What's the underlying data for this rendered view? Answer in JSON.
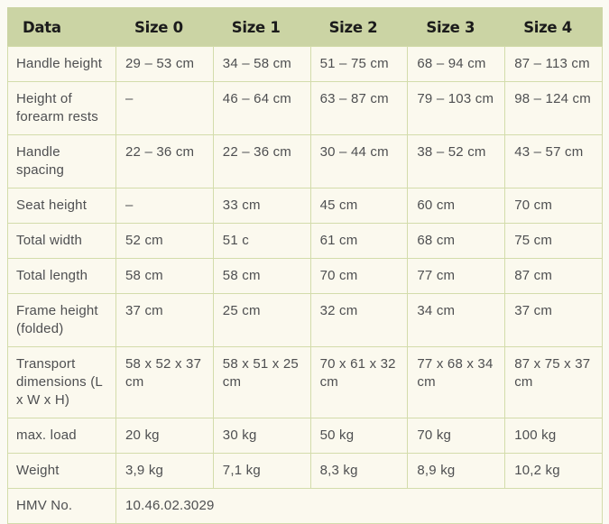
{
  "colors": {
    "page_bg": "#fbfaf3",
    "cell_bg": "#fbf9ee",
    "header_bg": "#cbd4a4",
    "border": "#d3dcab",
    "header_text": "#1b1b1b",
    "body_text": "#4e4f51"
  },
  "table": {
    "columns": [
      "Data",
      "Size 0",
      "Size 1",
      "Size 2",
      "Size 3",
      "Size 4"
    ],
    "rows": [
      {
        "label": "Handle height",
        "values": [
          "29 – 53 cm",
          "34 – 58 cm",
          "51 – 75 cm",
          "68 – 94 cm",
          "87 – 113 cm"
        ]
      },
      {
        "label": "Height of forearm rests",
        "values": [
          "–",
          "46 – 64 cm",
          "63 – 87 cm",
          "79 – 103 cm",
          "98 – 124 cm"
        ]
      },
      {
        "label": "Handle spacing",
        "values": [
          "22 – 36 cm",
          "22 – 36 cm",
          "30 – 44 cm",
          "38 – 52 cm",
          "43 – 57 cm"
        ]
      },
      {
        "label": "Seat height",
        "values": [
          "–",
          "33 cm",
          "45 cm",
          "60 cm",
          "70 cm"
        ]
      },
      {
        "label": "Total width",
        "values": [
          "52 cm",
          "51 c",
          "61 cm",
          "68 cm",
          "75 cm"
        ]
      },
      {
        "label": "Total length",
        "values": [
          "58 cm",
          "58 cm",
          "70 cm",
          "77 cm",
          "87 cm"
        ]
      },
      {
        "label": "Frame height (folded)",
        "values": [
          "37 cm",
          "25 cm",
          "32 cm",
          "34 cm",
          "37 cm"
        ]
      },
      {
        "label": "Transport dimensions (L x W x H)",
        "values": [
          "58 x 52 x 37 cm",
          "58 x 51 x 25 cm",
          "70 x 61 x 32 cm",
          "77 x 68 x 34 cm",
          "87 x 75 x 37 cm"
        ]
      },
      {
        "label": "max. load",
        "values": [
          "20 kg",
          "30 kg",
          "50 kg",
          "70 kg",
          "100 kg"
        ]
      },
      {
        "label": "Weight",
        "values": [
          "3,9 kg",
          "7,1 kg",
          "8,3 kg",
          "8,9 kg",
          "10,2 kg"
        ]
      }
    ],
    "footer_row": {
      "label": "HMV No.",
      "value": "10.46.02.3029"
    }
  }
}
